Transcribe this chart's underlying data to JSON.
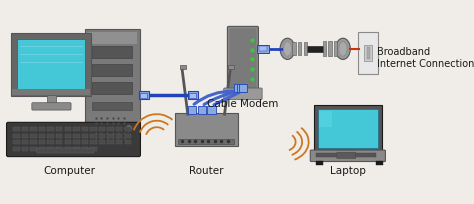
{
  "bg_color": "#f0ede8",
  "labels": {
    "computer": "Computer",
    "router": "Router",
    "cable_modem": "Cable Modem",
    "broadband": "Broadband\nInternet Connection",
    "laptop": "Laptop"
  },
  "font_size": 7.5,
  "fig_width": 4.74,
  "fig_height": 2.05,
  "dpi": 100,
  "colors": {
    "gray_dark": "#555555",
    "gray_med": "#8a8a8a",
    "gray_light": "#b0b0b0",
    "gray_pale": "#cccccc",
    "blue_screen": "#44c8d8",
    "blue_cable": "#2244bb",
    "blue_cable2": "#4466cc",
    "black": "#1a1a1a",
    "white": "#ffffff",
    "dark_gray": "#333333",
    "kbd_color": "#3a3a3a",
    "tower_color": "#7a7a7a",
    "monitor_border": "#666666",
    "orange_arc": "#cc7722",
    "coax_metal": "#999999",
    "coax_body": "#888888",
    "green_led": "#33cc33"
  }
}
